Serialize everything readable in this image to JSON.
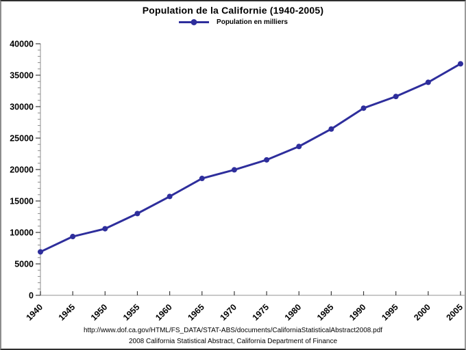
{
  "chart": {
    "title": "Population de la Californie (1940-2005)",
    "legend": {
      "label": "Population en milliers",
      "marker": "circle-on-line"
    }
  },
  "chart_data": {
    "type": "line",
    "title": "Population de la Californie (1940-2005)",
    "categories": [
      "1940",
      "1945",
      "1950",
      "1955",
      "1960",
      "1965",
      "1970",
      "1975",
      "1980",
      "1985",
      "1990",
      "1995",
      "2000",
      "2005"
    ],
    "series": [
      {
        "name": "Population en milliers",
        "values": [
          6907,
          9344,
          10586,
          13004,
          15717,
          18585,
          19953,
          21538,
          23668,
          26441,
          29760,
          31617,
          33871,
          36810
        ]
      }
    ],
    "xlabel": "",
    "ylabel": "",
    "ylim": [
      0,
      40000
    ],
    "ytick_step": 5000,
    "yminor_step": 1000,
    "grid": false,
    "legend_position": "top-center",
    "x_label_rotation": -45,
    "marker": "circle",
    "colors": {
      "line": "#2E2E9C",
      "axis": "#A8A8A8",
      "tick_major": "#3a3a3a",
      "tick_minor": "#8a8a8a",
      "text": "#000000",
      "background": "#FFFFFF"
    }
  },
  "footer": {
    "source_url": "http://www.dof.ca.gov/HTML/FS_DATA/STAT-ABS/documents/CaliforniaStatisticalAbstract2008.pdf",
    "source_citation": "2008 California Statistical Abstract, California Department of Finance"
  }
}
